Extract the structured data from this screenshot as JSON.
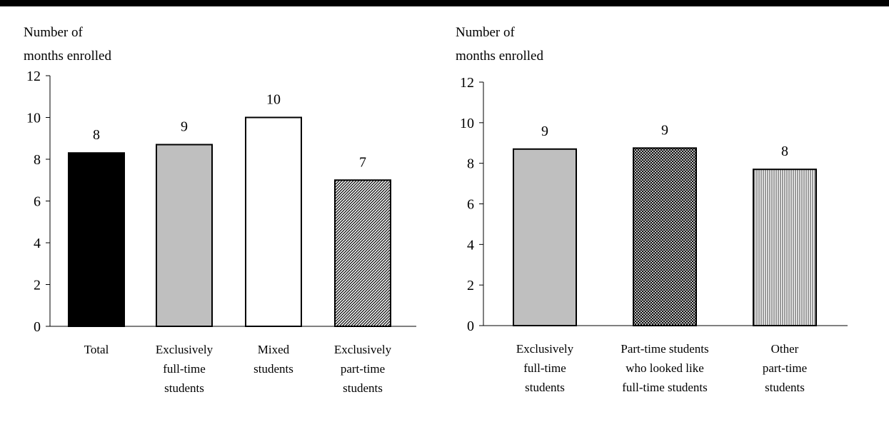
{
  "chart_data": [
    {
      "type": "bar",
      "ylabel_lines": [
        "Number of",
        "months enrolled"
      ],
      "ylim": [
        0,
        12
      ],
      "yticks": [
        "0",
        "2",
        "4",
        "6",
        "8",
        "10",
        "12"
      ],
      "categories": [
        [
          "Total"
        ],
        [
          "Exclusively",
          "full-time",
          "students"
        ],
        [
          "Mixed",
          "students"
        ],
        [
          "Exclusively",
          "part-time",
          "students"
        ]
      ],
      "values": [
        8.3,
        8.7,
        10.0,
        7.0
      ],
      "data_labels": [
        "8",
        "9",
        "10",
        "7"
      ],
      "fills": [
        "solid-black",
        "solid-gray",
        "white",
        "diagonal-hatch"
      ],
      "grid": false
    },
    {
      "type": "bar",
      "ylabel_lines": [
        "Number of",
        "months enrolled"
      ],
      "ylim": [
        0,
        12
      ],
      "yticks": [
        "0",
        "2",
        "4",
        "6",
        "8",
        "10",
        "12"
      ],
      "categories": [
        [
          "Exclusively",
          "full-time",
          "students"
        ],
        [
          "Part-time students",
          "who looked like",
          "full-time students"
        ],
        [
          "Other",
          "part-time",
          "students"
        ]
      ],
      "values": [
        8.7,
        8.75,
        7.7
      ],
      "data_labels": [
        "9",
        "9",
        "8"
      ],
      "fills": [
        "solid-gray",
        "cross-hatch",
        "vertical-lines"
      ],
      "grid": false
    }
  ]
}
